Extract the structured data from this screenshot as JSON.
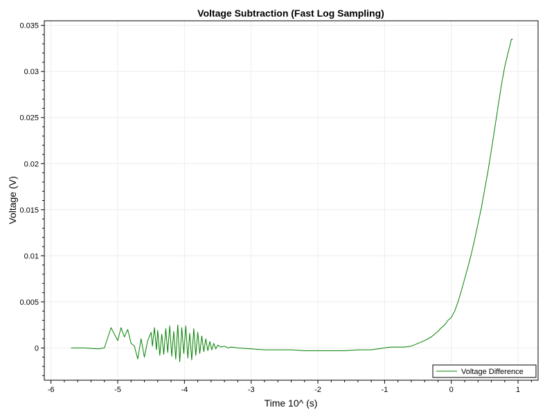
{
  "chart_data": {
    "type": "line",
    "title": "Voltage Subtraction (Fast Log Sampling)",
    "xlabel": "Time 10^ (s)",
    "ylabel": "Voltage (V)",
    "xlim": [
      -6.1,
      1.3
    ],
    "ylim": [
      -0.0035,
      0.0355
    ],
    "x_ticks": [
      -6,
      -5,
      -4,
      -3,
      -2,
      -1,
      0,
      1
    ],
    "x_tick_labels": [
      "-6",
      "-5",
      "-4",
      "-3",
      "-2",
      "-1",
      "0",
      "1"
    ],
    "y_ticks": [
      0,
      0.005,
      0.01,
      0.015,
      0.02,
      0.025,
      0.03,
      0.035
    ],
    "y_tick_labels": [
      "0",
      "0.005",
      "0.01",
      "0.015",
      "0.02",
      "0.025",
      "0.03",
      "0.035"
    ],
    "grid": true,
    "legend_position": "bottom-right",
    "colors": {
      "series": "#008000",
      "grid": "#ececec",
      "axis": "#000000"
    },
    "series": [
      {
        "name": "Voltage Difference",
        "x": [
          -5.7,
          -5.5,
          -5.3,
          -5.2,
          -5.1,
          -5.0,
          -4.95,
          -4.9,
          -4.85,
          -4.8,
          -4.75,
          -4.7,
          -4.65,
          -4.6,
          -4.55,
          -4.5,
          -4.48,
          -4.45,
          -4.42,
          -4.4,
          -4.37,
          -4.34,
          -4.31,
          -4.28,
          -4.25,
          -4.22,
          -4.19,
          -4.16,
          -4.13,
          -4.1,
          -4.07,
          -4.04,
          -4.01,
          -3.98,
          -3.95,
          -3.92,
          -3.89,
          -3.86,
          -3.83,
          -3.8,
          -3.77,
          -3.74,
          -3.71,
          -3.68,
          -3.65,
          -3.62,
          -3.59,
          -3.56,
          -3.53,
          -3.5,
          -3.45,
          -3.4,
          -3.35,
          -3.3,
          -3.2,
          -3.0,
          -2.8,
          -2.6,
          -2.4,
          -2.2,
          -2.0,
          -1.8,
          -1.6,
          -1.4,
          -1.2,
          -1.0,
          -0.9,
          -0.8,
          -0.7,
          -0.6,
          -0.5,
          -0.4,
          -0.3,
          -0.2,
          -0.15,
          -0.1,
          -0.05,
          0.0,
          0.05,
          0.1,
          0.15,
          0.2,
          0.25,
          0.3,
          0.35,
          0.4,
          0.45,
          0.5,
          0.55,
          0.6,
          0.65,
          0.7,
          0.75,
          0.8,
          0.85,
          0.9,
          0.92
        ],
        "y": [
          0.0,
          0.0,
          -0.0001,
          0.0,
          0.0022,
          0.0008,
          0.0022,
          0.0012,
          0.002,
          0.0005,
          0.0002,
          -0.0012,
          0.001,
          -0.001,
          0.0008,
          0.0017,
          0.0002,
          0.0022,
          -0.0002,
          0.0019,
          -0.0008,
          0.0015,
          -0.0007,
          0.0021,
          -0.0005,
          0.0024,
          -0.0009,
          0.0018,
          -0.0012,
          0.0025,
          -0.0015,
          0.0022,
          -0.0006,
          0.0024,
          -0.0011,
          0.0016,
          -0.0013,
          0.0021,
          -0.0008,
          0.0017,
          -0.0006,
          0.0013,
          -0.0004,
          0.001,
          -0.0003,
          0.0007,
          -0.0002,
          0.0005,
          -0.0001,
          0.0003,
          0.0001,
          0.0002,
          0.0,
          0.0001,
          0.0,
          -0.0001,
          -0.0002,
          -0.0002,
          -0.0002,
          -0.0003,
          -0.0003,
          -0.0003,
          -0.0003,
          -0.0002,
          -0.0002,
          0.0,
          0.0001,
          0.0001,
          0.0001,
          0.0002,
          0.0005,
          0.0008,
          0.0012,
          0.0018,
          0.0022,
          0.0025,
          0.003,
          0.0033,
          0.004,
          0.005,
          0.0062,
          0.0075,
          0.0088,
          0.0102,
          0.0118,
          0.0135,
          0.0152,
          0.0172,
          0.0192,
          0.0215,
          0.0238,
          0.0262,
          0.0285,
          0.0305,
          0.032,
          0.0335,
          0.0335
        ]
      }
    ]
  }
}
